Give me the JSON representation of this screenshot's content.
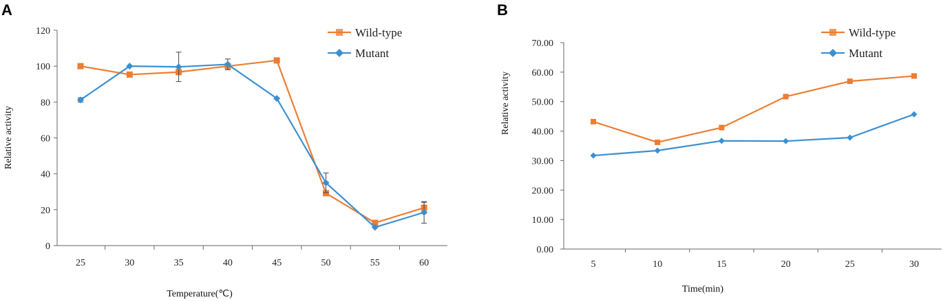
{
  "chart_data": [
    {
      "panel": "A",
      "type": "line",
      "title": "",
      "xlabel": "Temperature(℃)",
      "ylabel": "Relative activity",
      "categories": [
        "25",
        "30",
        "35",
        "40",
        "45",
        "50",
        "55",
        "60"
      ],
      "yticks": [
        "0",
        "20",
        "40",
        "60",
        "80",
        "100",
        "120"
      ],
      "ylim": [
        0,
        120
      ],
      "legend_position": "top-right",
      "series": [
        {
          "name": "Wild-type",
          "color": "#ED7D31",
          "marker": "square",
          "values": [
            100,
            95.3,
            96.7,
            100,
            103.2,
            29.2,
            12.7,
            21.1
          ],
          "errors": [
            0,
            0,
            0,
            0,
            0,
            0,
            0,
            3.0
          ]
        },
        {
          "name": "Mutant",
          "color": "#3B8FD0",
          "marker": "diamond",
          "values": [
            81.2,
            100,
            99.6,
            101,
            82,
            35,
            10.2,
            18.5
          ],
          "errors": [
            1.2,
            0,
            8.2,
            3.0,
            0,
            5.5,
            0,
            6.0
          ]
        }
      ]
    },
    {
      "panel": "B",
      "type": "line",
      "title": "",
      "xlabel": "Time(min)",
      "ylabel": "Relative activity",
      "categories": [
        "5",
        "10",
        "15",
        "20",
        "25",
        "30"
      ],
      "yticks": [
        "0.00",
        "10.00",
        "20.00",
        "30.00",
        "40.00",
        "50.00",
        "60.00",
        "70.00"
      ],
      "ylim": [
        0,
        70
      ],
      "legend_position": "top-right",
      "series": [
        {
          "name": "Wild-type",
          "color": "#ED7D31",
          "marker": "square",
          "values": [
            43.2,
            36.2,
            41.2,
            51.7,
            56.9,
            58.7
          ]
        },
        {
          "name": "Mutant",
          "color": "#3B8FD0",
          "marker": "diamond",
          "values": [
            31.7,
            33.4,
            36.7,
            36.6,
            37.8,
            45.7
          ]
        }
      ]
    }
  ]
}
